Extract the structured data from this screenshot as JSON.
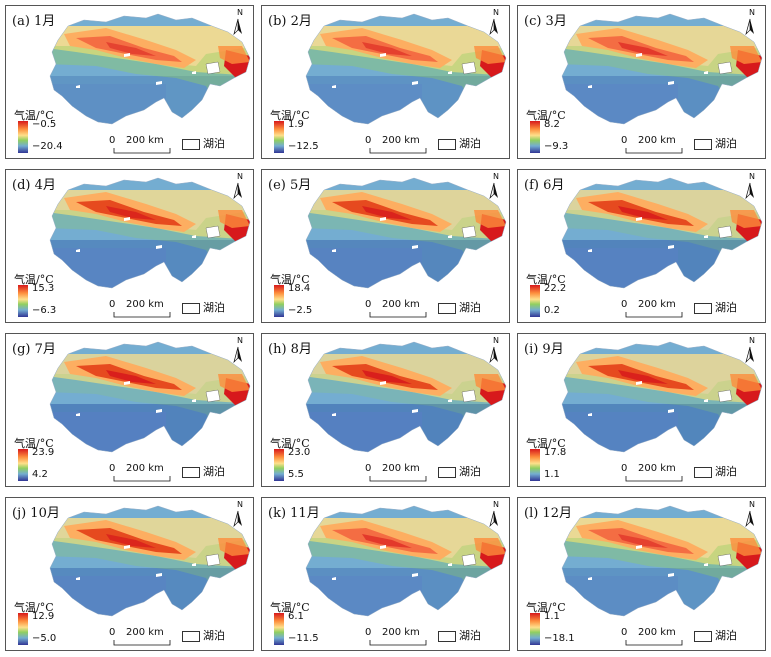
{
  "legend_title": "气温/°C",
  "lake_label": "湖泊",
  "scale": {
    "zero": "0",
    "distance": "200 km"
  },
  "north_label": "N",
  "colors": {
    "ramp": [
      "#d7191c",
      "#fd8d3c",
      "#fee08b",
      "#91cf60",
      "#74add1",
      "#4575b4",
      "#313695"
    ],
    "lake": "#ffffff"
  },
  "panels": [
    {
      "label": "(a) 1月",
      "max": "−0.5",
      "min": "−20.4",
      "warmth": 0.15
    },
    {
      "label": "(b) 2月",
      "max": "1.9",
      "min": "−12.5",
      "warmth": 0.22
    },
    {
      "label": "(c) 3月",
      "max": "8.2",
      "min": "−9.3",
      "warmth": 0.35
    },
    {
      "label": "(d) 4月",
      "max": "15.3",
      "min": "−6.3",
      "warmth": 0.55
    },
    {
      "label": "(e) 5月",
      "max": "18.4",
      "min": "−2.5",
      "warmth": 0.65
    },
    {
      "label": "(f) 6月",
      "max": "22.2",
      "min": "0.2",
      "warmth": 0.75
    },
    {
      "label": "(g) 7月",
      "max": "23.9",
      "min": "4.2",
      "warmth": 0.8
    },
    {
      "label": "(h) 8月",
      "max": "23.0",
      "min": "5.5",
      "warmth": 0.8
    },
    {
      "label": "(i) 9月",
      "max": "17.8",
      "min": "1.1",
      "warmth": 0.7
    },
    {
      "label": "(j) 10月",
      "max": "12.9",
      "min": "−5.0",
      "warmth": 0.55
    },
    {
      "label": "(k) 11月",
      "max": "6.1",
      "min": "−11.5",
      "warmth": 0.35
    },
    {
      "label": "(l) 12月",
      "max": "1.1",
      "min": "−18.1",
      "warmth": 0.2
    }
  ]
}
